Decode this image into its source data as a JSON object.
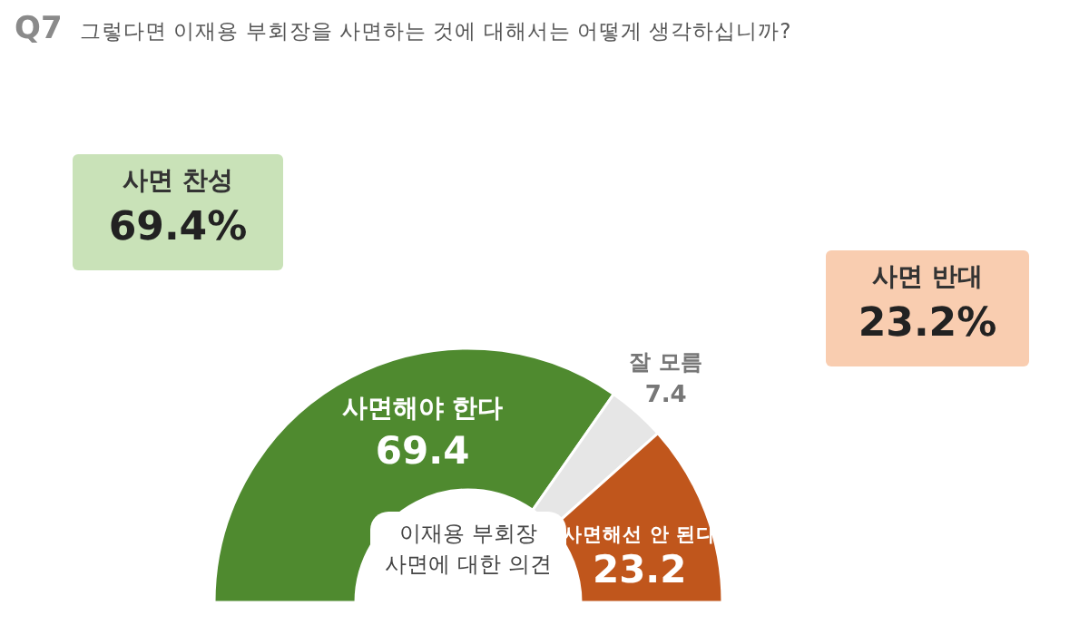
{
  "chart_data": {
    "type": "donut",
    "title": "Q7",
    "subtitle": "그렇다면 이재용 부회장을 사면하는 것에 대해서는 어떻게 생각하십니까?",
    "categories": [
      "사면해야 한다",
      "잘 모름",
      "사면해선 안 된다"
    ],
    "values": [
      69.4,
      7.4,
      23.2
    ],
    "colors": [
      "#4f8a2f",
      "#e6e6e6",
      "#c0561c"
    ],
    "data_labels": true,
    "annotations": [
      "사면 찬성",
      "69.4%",
      "사면 반대",
      "23.2%",
      "이재용 부회장 사면에 대한 의견"
    ]
  }
}
